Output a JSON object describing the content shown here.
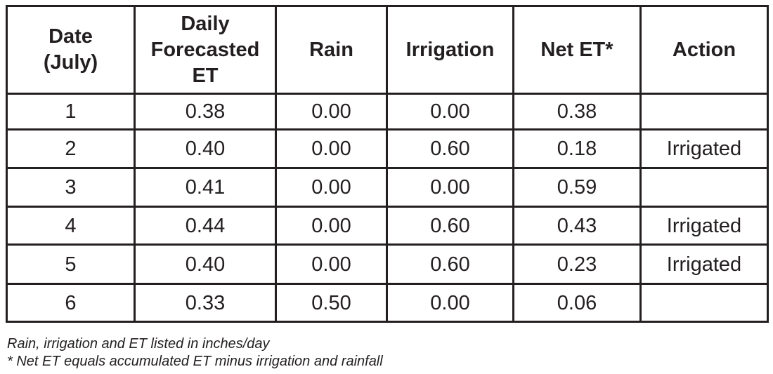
{
  "table": {
    "headers": {
      "date": "Date (July)",
      "forecast": "Daily Forecasted ET",
      "rain": "Rain",
      "irrigation": "Irrigation",
      "net": "Net ET*",
      "action": "Action"
    },
    "rows": [
      {
        "date": "1",
        "forecast": "0.38",
        "rain": "0.00",
        "irrigation": "0.00",
        "net": "0.38",
        "action": ""
      },
      {
        "date": "2",
        "forecast": "0.40",
        "rain": "0.00",
        "irrigation": "0.60",
        "net": "0.18",
        "action": "Irrigated"
      },
      {
        "date": "3",
        "forecast": "0.41",
        "rain": "0.00",
        "irrigation": "0.00",
        "net": "0.59",
        "action": ""
      },
      {
        "date": "4",
        "forecast": "0.44",
        "rain": "0.00",
        "irrigation": "0.60",
        "net": "0.43",
        "action": "Irrigated"
      },
      {
        "date": "5",
        "forecast": "0.40",
        "rain": "0.00",
        "irrigation": "0.60",
        "net": "0.23",
        "action": "Irrigated"
      },
      {
        "date": "6",
        "forecast": "0.33",
        "rain": "0.50",
        "irrigation": "0.00",
        "net": "0.06",
        "action": ""
      }
    ]
  },
  "footnotes": {
    "units": "Rain, irrigation and ET listed in inches/day",
    "net_et": "* Net ET equals accumulated ET minus irrigation and rainfall"
  }
}
